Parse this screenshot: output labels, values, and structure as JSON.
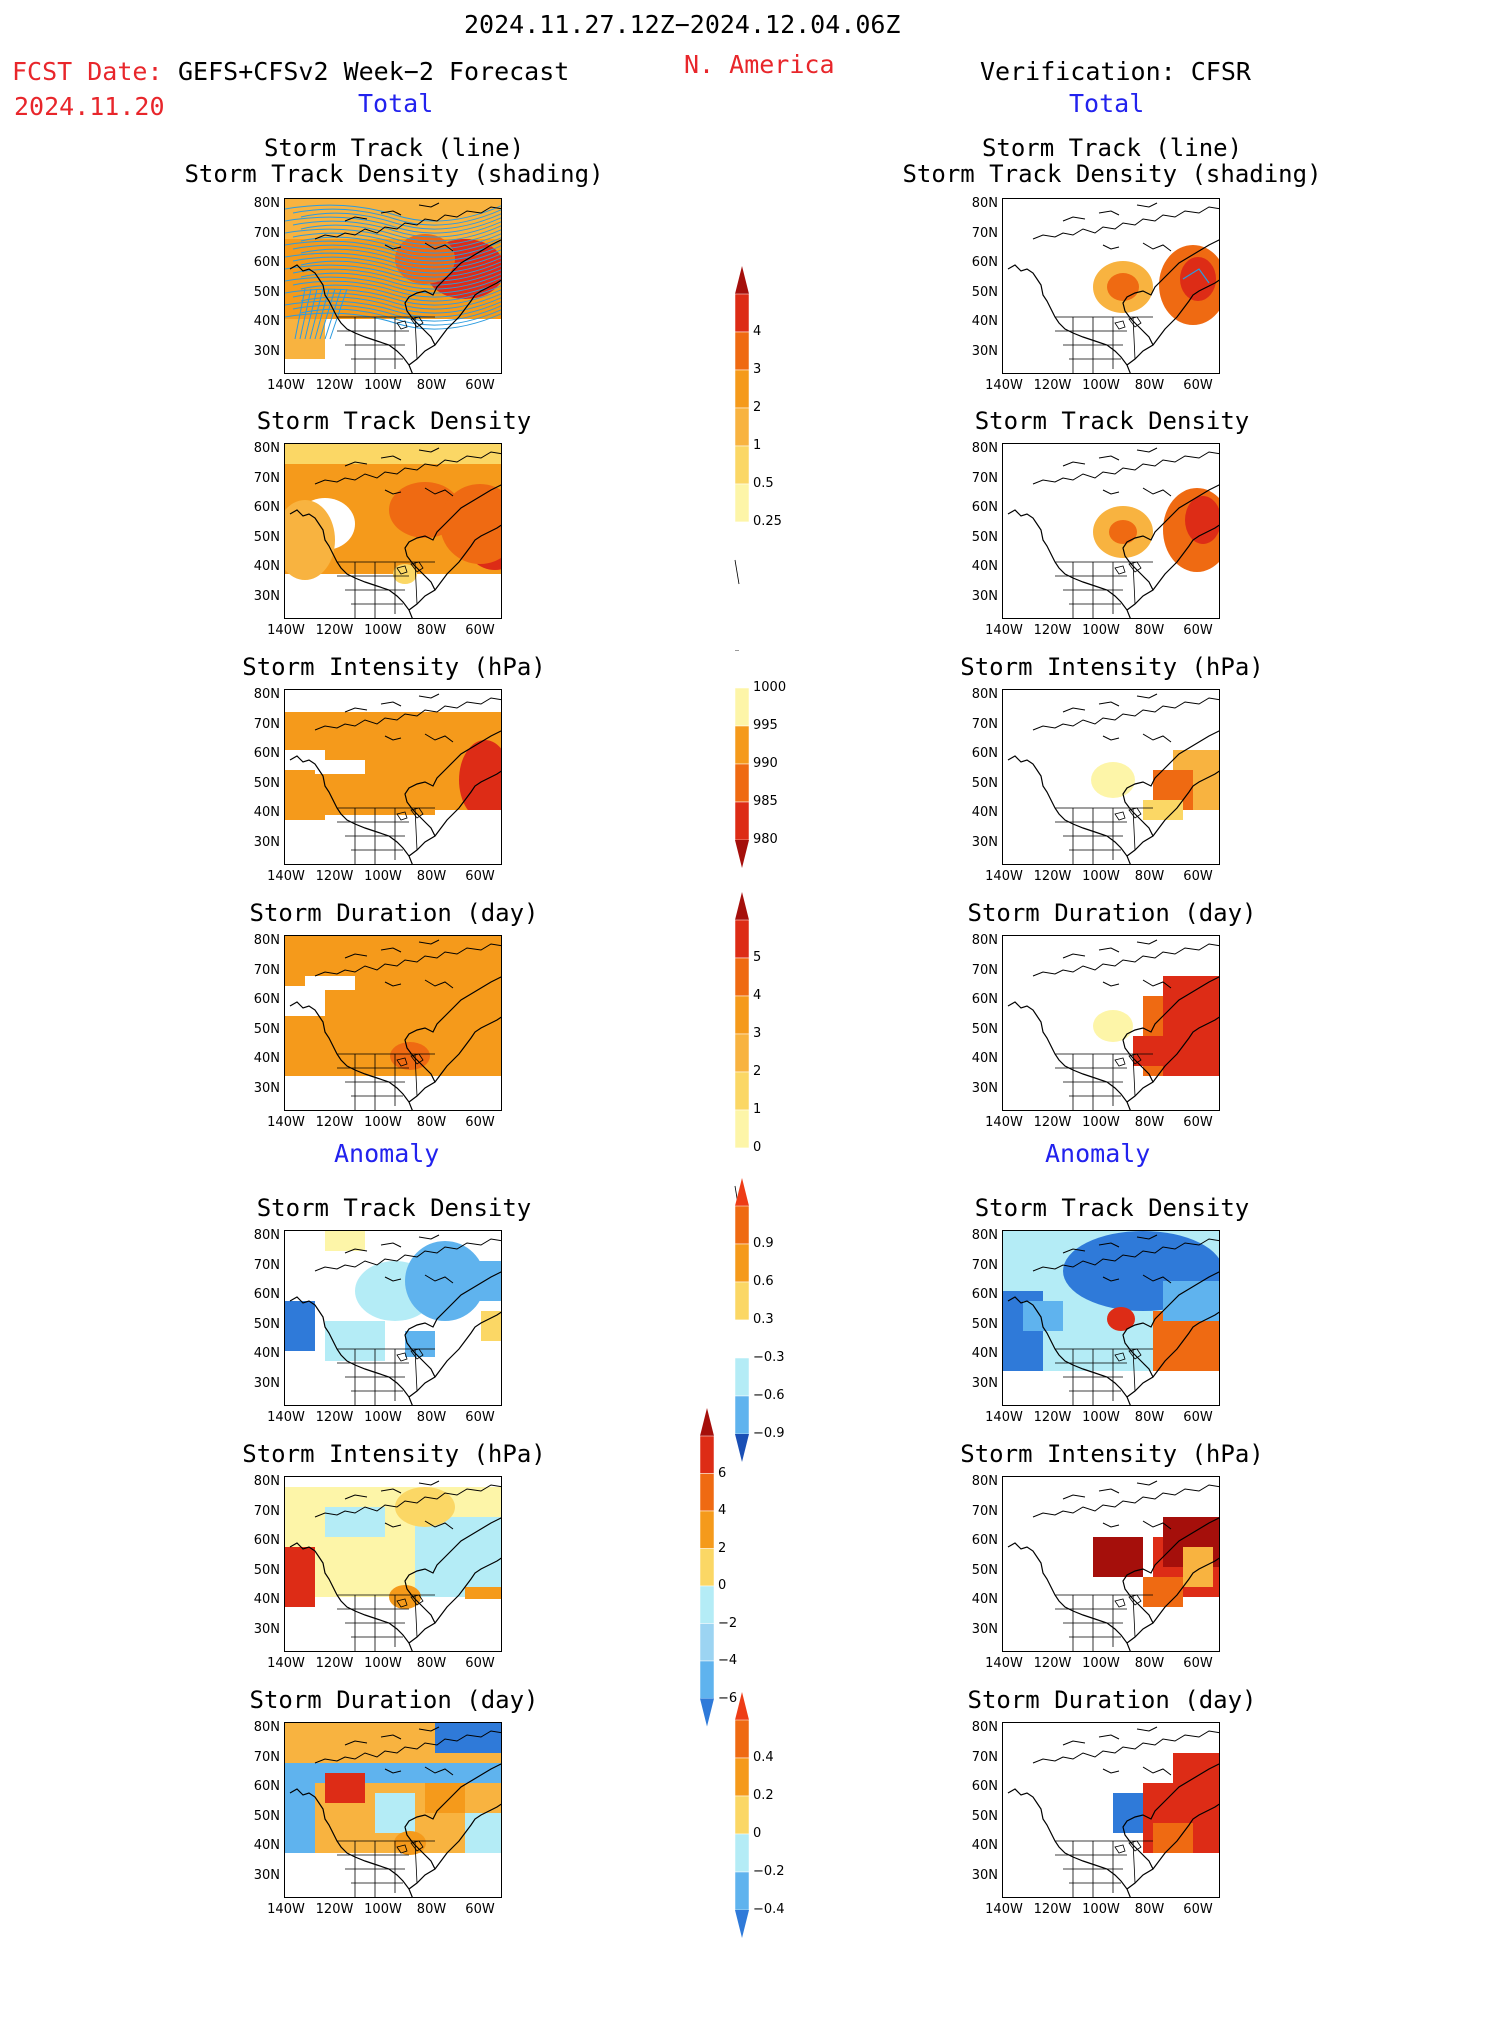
{
  "header": {
    "period": "2024.11.27.12Z−2024.12.04.06Z",
    "fcst_date_label": "FCST Date:",
    "fcst_date": "2024.11.20",
    "forecast_name": "GEFS+CFSv2 Week−2 Forecast",
    "region": "N. America",
    "verification": "Verification: CFSR",
    "left_total": "Total",
    "right_total": "Total",
    "left_anomaly": "Anomaly",
    "right_anomaly": "Anomaly"
  },
  "panel_titles": {
    "track_line": "Storm Track (line)",
    "track_density_shading": "Storm Track Density (shading)",
    "track_density": "Storm Track Density",
    "intensity": "Storm Intensity (hPa)",
    "duration": "Storm Duration (day)"
  },
  "axes": {
    "lat_labels": [
      "80N",
      "70N",
      "60N",
      "50N",
      "40N",
      "30N"
    ],
    "lon_labels": [
      "140W",
      "120W",
      "100W",
      "80W",
      "60W"
    ]
  },
  "colorbars": {
    "density_total": [
      "4",
      "3",
      "2",
      "1",
      "0.5",
      "0.25"
    ],
    "intensity_total": [
      "1000",
      "995",
      "990",
      "985",
      "980"
    ],
    "duration_total": [
      "5",
      "4",
      "3",
      "2",
      "1",
      "0"
    ],
    "density_anom": [
      "0.9",
      "0.6",
      "0.3",
      "−0.3",
      "−0.6",
      "−0.9"
    ],
    "intensity_anom": [
      "6",
      "4",
      "2",
      "0",
      "−2",
      "−4",
      "−6"
    ],
    "duration_anom": [
      "0.4",
      "0.2",
      "0",
      "−0.2",
      "−0.4"
    ]
  },
  "colors": {
    "pale_yellow": "#fdf5a8",
    "yellow": "#fbd765",
    "light_orange": "#f8b340",
    "orange": "#f59a1b",
    "dark_orange": "#ef6a12",
    "red": "#dd2c16",
    "dark_red": "#a50f0b",
    "light_blue": "#b4ecf6",
    "mid_blue": "#5fb3ee",
    "blue": "#2f7ad9",
    "dark_blue": "#1a4fb5",
    "track_line": "#2b9be0"
  }
}
